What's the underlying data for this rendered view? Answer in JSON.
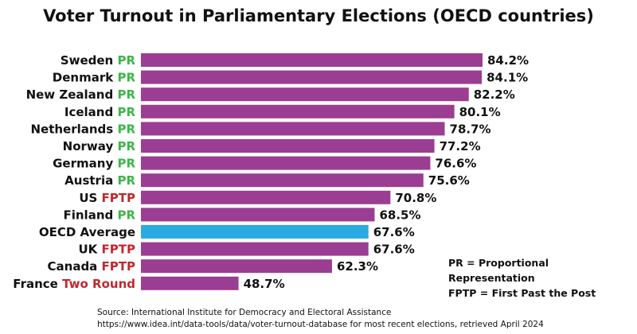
{
  "chart_data": {
    "type": "bar",
    "orientation": "horizontal",
    "title": "Voter Turnout in Parliamentary Elections (OECD countries)",
    "categories": [
      "Sweden",
      "Denmark",
      "New Zealand",
      "Iceland",
      "Netherlands",
      "Norway",
      "Germany",
      "Austria",
      "US",
      "Finland",
      "OECD Average",
      "UK",
      "Canada",
      "France"
    ],
    "systems": [
      "PR",
      "PR",
      "PR",
      "PR",
      "PR",
      "PR",
      "PR",
      "PR",
      "FPTP",
      "PR",
      "",
      "FPTP",
      "FPTP",
      "Two Round"
    ],
    "values": [
      84.2,
      84.1,
      82.2,
      80.1,
      78.7,
      77.2,
      76.6,
      75.6,
      70.8,
      68.5,
      67.6,
      67.6,
      62.3,
      48.7
    ],
    "value_labels": [
      "84.2%",
      "84.1%",
      "82.2%",
      "80.1%",
      "78.7%",
      "77.2%",
      "76.6%",
      "75.6%",
      "70.8%",
      "68.5%",
      "67.6%",
      "67.6%",
      "62.3%",
      "48.7%"
    ],
    "unit": "%",
    "grid": false,
    "legend_placement": "bottom-right",
    "colors": {
      "bar": "#9b3d92",
      "average_bar": "#29abe2",
      "pr": "#3db54a",
      "non_pr": "#c1272d",
      "text": "#111111"
    }
  },
  "legend": {
    "line1": "PR = Proportional Representation",
    "line2": "FPTP = First Past the Post"
  },
  "source": {
    "line1": "Source: International Institute for Democracy and Electoral Assistance",
    "line2": "https://www.idea.int/data-tools/data/voter-turnout-database for most recent elections, retrieved April 2024"
  }
}
